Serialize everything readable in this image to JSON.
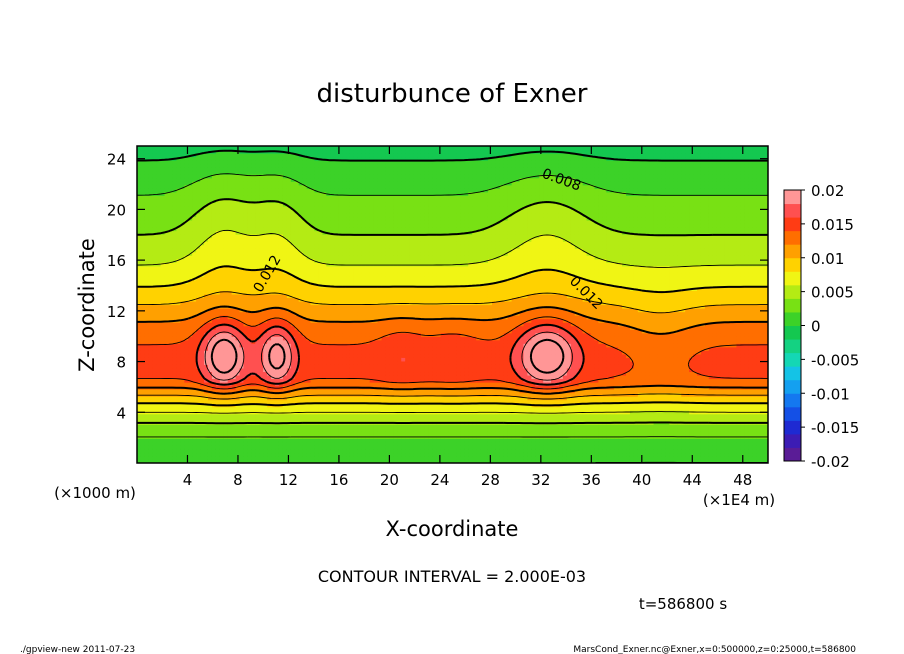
{
  "chart_data": {
    "type": "heatmap",
    "title": "disturbunce of Exner",
    "xlabel": "X-coordinate",
    "ylabel": "Z-coordinate",
    "x_unit_left": "(×1000 m)",
    "x_unit_right": "(×1E4 m)",
    "xlim": [
      0,
      50
    ],
    "ylim": [
      0,
      25
    ],
    "x_ticks": [
      4,
      8,
      12,
      16,
      20,
      24,
      28,
      32,
      36,
      40,
      44,
      48
    ],
    "y_ticks": [
      4,
      8,
      12,
      16,
      20,
      24
    ],
    "colorbar_ticks": [
      "0.02",
      "0.015",
      "0.01",
      "0.005",
      "0",
      "-0.005",
      "-0.01",
      "-0.015",
      "-0.02"
    ],
    "colorbar_levels": [
      {
        "lo": -0.02,
        "hi": -0.018,
        "color": "#5a1c96"
      },
      {
        "lo": -0.018,
        "hi": -0.016,
        "color": "#3c1cb4"
      },
      {
        "lo": -0.016,
        "hi": -0.014,
        "color": "#1e2ad2"
      },
      {
        "lo": -0.014,
        "hi": -0.012,
        "color": "#1450e6"
      },
      {
        "lo": -0.012,
        "hi": -0.01,
        "color": "#1478f0"
      },
      {
        "lo": -0.01,
        "hi": -0.008,
        "color": "#14a0f0"
      },
      {
        "lo": -0.008,
        "hi": -0.006,
        "color": "#14c3e6"
      },
      {
        "lo": -0.006,
        "hi": -0.004,
        "color": "#14d7b4"
      },
      {
        "lo": -0.004,
        "hi": -0.002,
        "color": "#14d282"
      },
      {
        "lo": -0.002,
        "hi": 0.0,
        "color": "#14c850"
      },
      {
        "lo": 0.0,
        "hi": 0.002,
        "color": "#3cd228"
      },
      {
        "lo": 0.002,
        "hi": 0.004,
        "color": "#78e114"
      },
      {
        "lo": 0.004,
        "hi": 0.006,
        "color": "#b4eb14"
      },
      {
        "lo": 0.006,
        "hi": 0.008,
        "color": "#f0f514"
      },
      {
        "lo": 0.008,
        "hi": 0.01,
        "color": "#ffd200"
      },
      {
        "lo": 0.01,
        "hi": 0.012,
        "color": "#ffa000"
      },
      {
        "lo": 0.012,
        "hi": 0.014,
        "color": "#ff6e00"
      },
      {
        "lo": 0.014,
        "hi": 0.016,
        "color": "#ff3c14"
      },
      {
        "lo": 0.016,
        "hi": 0.018,
        "color": "#ff5050"
      },
      {
        "lo": 0.018,
        "hi": 0.02,
        "color": "#ff9696"
      }
    ],
    "contour_labels": [
      "0.012",
      "0.008",
      "0.012"
    ],
    "contour_interval_text": "CONTOUR INTERVAL = 2.000E-03",
    "time_text": "t=586800 s",
    "footer_left": "./gpview-new   2011-07-23",
    "footer_right": "MarsCond_Exner.nc@Exner,x=0:500000,z=0:25000,t=586800"
  }
}
